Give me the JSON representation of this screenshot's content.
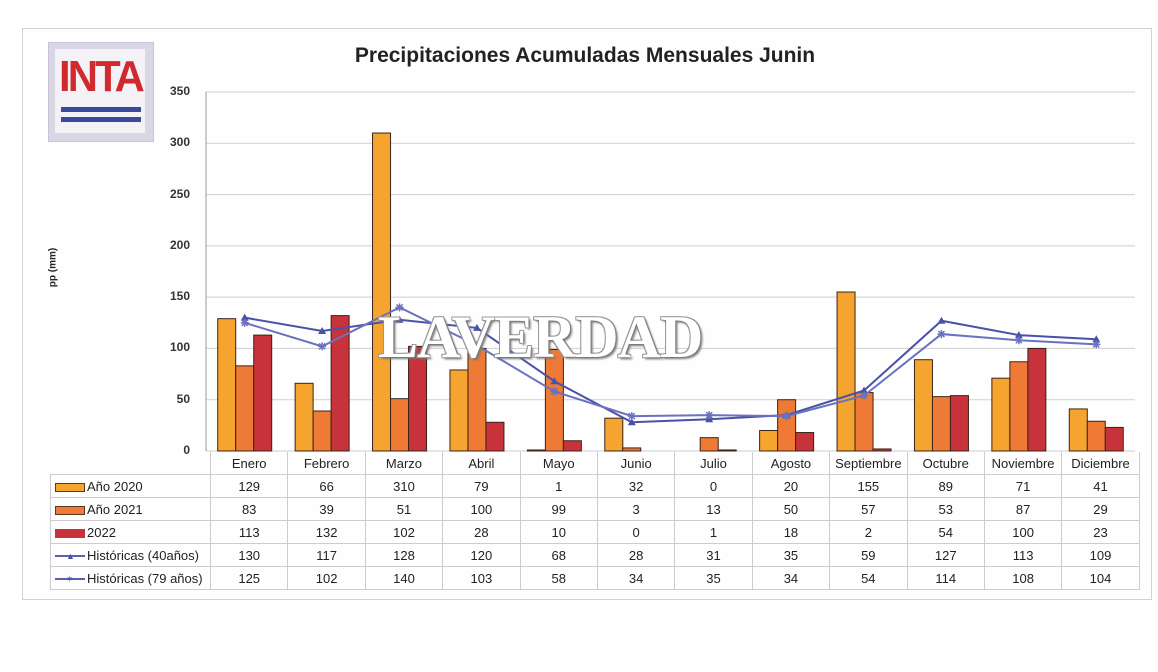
{
  "logo": {
    "text": "INTA"
  },
  "watermark": "LAVERDAD",
  "chart_data": {
    "type": "bar",
    "title": "Precipitaciones Acumuladas Mensuales Junin",
    "xlabel": "",
    "ylabel": "pp (mm)",
    "ylim": [
      0,
      350
    ],
    "yticks": [
      0,
      50,
      100,
      150,
      200,
      250,
      300,
      350
    ],
    "grid": true,
    "legend_position": "data-table",
    "categories": [
      "Enero",
      "Febrero",
      "Marzo",
      "Abril",
      "Mayo",
      "Junio",
      "Julio",
      "Agosto",
      "Septiembre",
      "Octubre",
      "Noviembre",
      "Diciembre"
    ],
    "series": [
      {
        "name": "Año 2020",
        "type": "bar",
        "color": "#f5a52f",
        "values": [
          129,
          66,
          310,
          79,
          1,
          32,
          0,
          20,
          155,
          89,
          71,
          41
        ]
      },
      {
        "name": "Año 2021",
        "type": "bar",
        "color": "#ee7a35",
        "values": [
          83,
          39,
          51,
          100,
          99,
          3,
          13,
          50,
          57,
          53,
          87,
          29
        ]
      },
      {
        "name": "2022",
        "type": "bar",
        "color": "#c8323a",
        "values": [
          113,
          132,
          102,
          28,
          10,
          0,
          1,
          18,
          2,
          54,
          100,
          23
        ]
      },
      {
        "name": "Históricas (40años)",
        "type": "line",
        "marker": "triangle",
        "color": "#4a52a8",
        "values": [
          130,
          117,
          128,
          120,
          68,
          28,
          31,
          35,
          59,
          127,
          113,
          109
        ]
      },
      {
        "name": "Históricas (79 años)",
        "type": "line",
        "marker": "star",
        "color": "#6a72c0",
        "values": [
          125,
          102,
          140,
          103,
          58,
          34,
          35,
          34,
          54,
          114,
          108,
          104
        ]
      }
    ]
  }
}
